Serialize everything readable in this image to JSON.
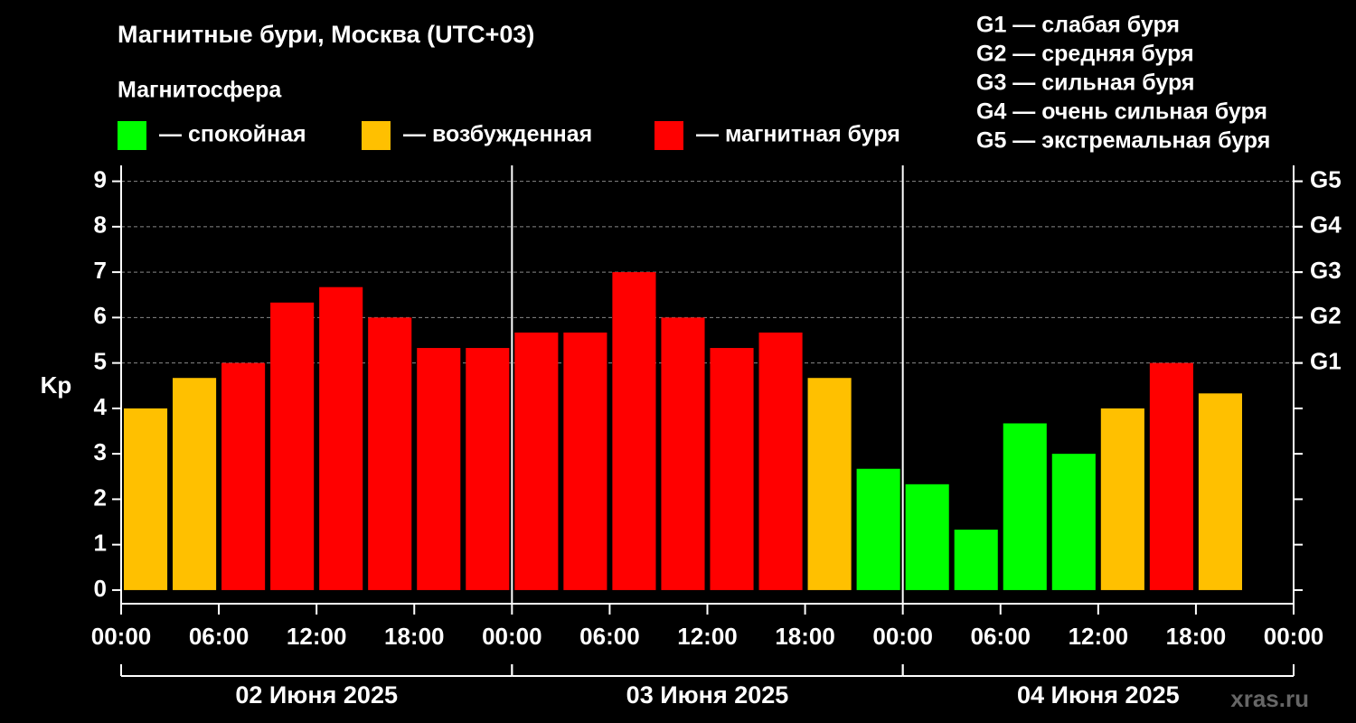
{
  "chart_data": {
    "type": "bar",
    "title": "Магнитные бури, Москва (UTC+03)",
    "legend_title": "Магнитосфера",
    "legend": [
      {
        "label": "— спокойная",
        "color": "#00ff00"
      },
      {
        "label": "— возбужденная",
        "color": "#ffc000"
      },
      {
        "label": "— магнитная буря",
        "color": "#ff0000"
      }
    ],
    "storm_levels": [
      "G1 — слабая буря",
      "G2 — средняя буря",
      "G3 — сильная буря",
      "G4 — очень сильная буря",
      "G5 — экстремальная буря"
    ],
    "ylabel": "Kp",
    "x": [
      1.5,
      4.5,
      7.5,
      10.5,
      13.5,
      16.5,
      19.5,
      22.5,
      25.5,
      28.5,
      31.5,
      34.5,
      37.5,
      40.5,
      43.5,
      46.5,
      49.5,
      52.5,
      55.5,
      58.5,
      61.5,
      64.5,
      67.5
    ],
    "values": [
      4,
      4.67,
      5,
      6.33,
      6.67,
      6,
      5.33,
      5.33,
      5.67,
      5.67,
      7,
      6,
      5.33,
      5.67,
      4.67,
      2.67,
      2.33,
      1.33,
      3.67,
      3,
      4,
      5,
      4.33
    ],
    "colors": [
      "#ffc000",
      "#ffc000",
      "#ff0000",
      "#ff0000",
      "#ff0000",
      "#ff0000",
      "#ff0000",
      "#ff0000",
      "#ff0000",
      "#ff0000",
      "#ff0000",
      "#ff0000",
      "#ff0000",
      "#ff0000",
      "#ffc000",
      "#00ff00",
      "#00ff00",
      "#00ff00",
      "#00ff00",
      "#00ff00",
      "#ffc000",
      "#ff0000",
      "#ffc000"
    ],
    "xlim": [
      0,
      72
    ],
    "xticks": [
      {
        "value": 0,
        "label": "00:00"
      },
      {
        "value": 6,
        "label": "06:00"
      },
      {
        "value": 12,
        "label": "12:00"
      },
      {
        "value": 18,
        "label": "18:00"
      },
      {
        "value": 24,
        "label": "00:00"
      },
      {
        "value": 30,
        "label": "06:00"
      },
      {
        "value": 36,
        "label": "12:00"
      },
      {
        "value": 42,
        "label": "18:00"
      },
      {
        "value": 48,
        "label": "00:00"
      },
      {
        "value": 54,
        "label": "06:00"
      },
      {
        "value": 60,
        "label": "12:00"
      },
      {
        "value": 66,
        "label": "18:00"
      },
      {
        "value": 72,
        "label": "00:00"
      }
    ],
    "days": [
      {
        "label": "02 Июня 2025",
        "start": 0,
        "end": 24
      },
      {
        "label": "03 Июня 2025",
        "start": 24,
        "end": 48
      },
      {
        "label": "04 Июня 2025",
        "start": 48,
        "end": 72
      }
    ],
    "ylim": [
      -0.3,
      9.35
    ],
    "yticks": [
      0,
      1,
      2,
      3,
      4,
      5,
      6,
      7,
      8,
      9
    ],
    "y2lim": [
      -0.3,
      9.35
    ],
    "y2ticks": [
      {
        "value": 5,
        "label": "G1"
      },
      {
        "value": 6,
        "label": "G2"
      },
      {
        "value": 7,
        "label": "G3"
      },
      {
        "value": 8,
        "label": "G4"
      },
      {
        "value": 9,
        "label": "G5"
      }
    ],
    "grid": true,
    "watermark": "xras.ru"
  }
}
